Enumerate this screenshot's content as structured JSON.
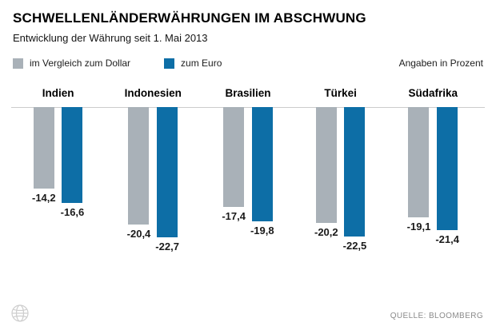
{
  "header": {
    "title": "SCHWELLENLÄNDERWÄHRUNGEN IM ABSCHWUNG",
    "subtitle": "Entwicklung der Währung seit 1. Mai 2013"
  },
  "legend": {
    "dollar_label": "im Vergleich zum Dollar",
    "euro_label": "zum Euro",
    "note": "Angaben in Prozent"
  },
  "colors": {
    "dollar": "#a9b1b8",
    "euro": "#0d6ea6",
    "baseline": "#cccccc"
  },
  "chart_data": {
    "type": "bar",
    "title": "SCHWELLENLÄNDERWÄHRUNGEN IM ABSCHWUNG",
    "subtitle": "Entwicklung der Währung seit 1. Mai 2013",
    "unit": "Prozent",
    "orientation": "vertical-negative",
    "ylim": [
      -25,
      0
    ],
    "grid": false,
    "legend_position": "top-left",
    "categories": [
      "Indien",
      "Indonesien",
      "Brasilien",
      "Türkei",
      "Südafrika"
    ],
    "series": [
      {
        "name": "im Vergleich zum Dollar",
        "color": "#a9b1b8",
        "values": [
          -14.2,
          -20.4,
          -17.4,
          -20.2,
          -19.1
        ]
      },
      {
        "name": "zum Euro",
        "color": "#0d6ea6",
        "values": [
          -16.6,
          -22.7,
          -19.8,
          -22.5,
          -21.4
        ]
      }
    ],
    "value_labels": [
      [
        "-14,2",
        "-16,6"
      ],
      [
        "-20,4",
        "-22,7"
      ],
      [
        "-17,4",
        "-19,8"
      ],
      [
        "-20,2",
        "-22,5"
      ],
      [
        "-19,1",
        "-21,4"
      ]
    ]
  },
  "footer": {
    "source": "QUELLE: BLOOMBERG",
    "globe_icon": "globe-watermark-icon"
  }
}
